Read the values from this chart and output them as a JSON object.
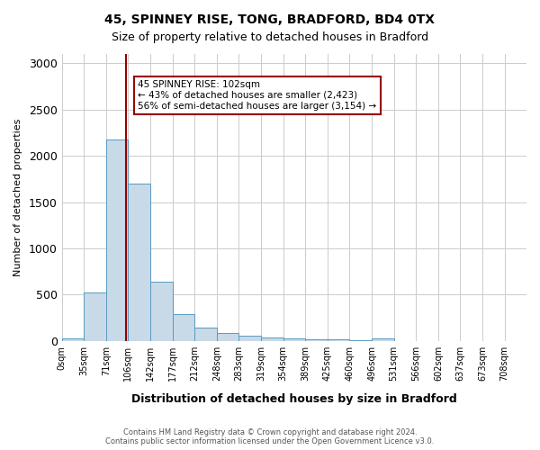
{
  "title1": "45, SPINNEY RISE, TONG, BRADFORD, BD4 0TX",
  "title2": "Size of property relative to detached houses in Bradford",
  "xlabel": "Distribution of detached houses by size in Bradford",
  "ylabel": "Number of detached properties",
  "footnote": "Contains HM Land Registry data © Crown copyright and database right 2024.\nContains public sector information licensed under the Open Government Licence v3.0.",
  "bin_labels": [
    "0sqm",
    "35sqm",
    "71sqm",
    "106sqm",
    "142sqm",
    "177sqm",
    "212sqm",
    "248sqm",
    "283sqm",
    "319sqm",
    "354sqm",
    "389sqm",
    "425sqm",
    "460sqm",
    "496sqm",
    "531sqm",
    "566sqm",
    "602sqm",
    "637sqm",
    "673sqm",
    "708sqm"
  ],
  "bin_edges": [
    0,
    35,
    71,
    106,
    142,
    177,
    212,
    248,
    283,
    319,
    354,
    389,
    425,
    460,
    496,
    531,
    566,
    602,
    637,
    673,
    708
  ],
  "bar_heights": [
    30,
    520,
    2180,
    1700,
    640,
    290,
    145,
    90,
    55,
    40,
    25,
    20,
    15,
    10,
    30,
    2,
    2,
    2,
    2,
    2
  ],
  "bar_color": "#c8d9e8",
  "bar_edge_color": "#5a9abf",
  "bar_alpha": 1.0,
  "vline_x": 102,
  "vline_color": "#990000",
  "annotation_text": "45 SPINNEY RISE: 102sqm\n← 43% of detached houses are smaller (2,423)\n56% of semi-detached houses are larger (3,154) →",
  "annotation_box_color": "white",
  "annotation_box_edge_color": "#990000",
  "ylim": [
    0,
    3100
  ],
  "yticks": [
    0,
    500,
    1000,
    1500,
    2000,
    2500,
    3000
  ],
  "background_color": "white",
  "grid_color": "#cccccc"
}
